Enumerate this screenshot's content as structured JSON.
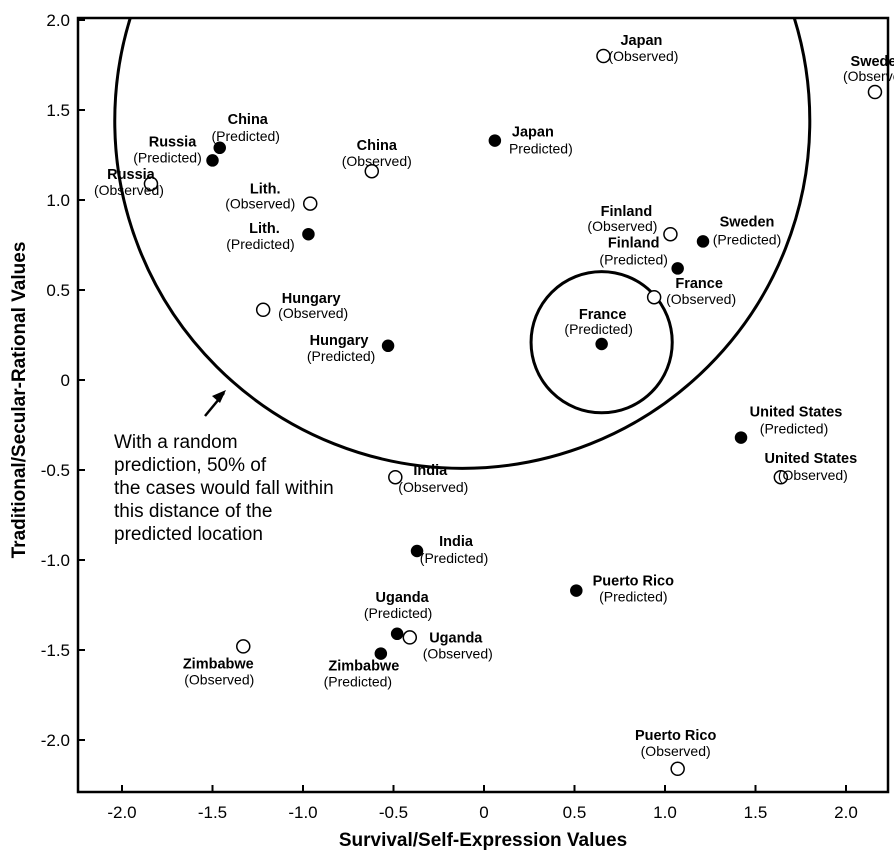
{
  "chart_data": {
    "type": "scatter",
    "xlabel": "Survival/Self-Expression Values",
    "ylabel": "Traditional/Secular-Rational Values",
    "xlim": [
      -2.3,
      2.25
    ],
    "ylim": [
      -2.3,
      2.0
    ],
    "x_ticks": [
      {
        "value": -2.0,
        "label": "-2.0"
      },
      {
        "value": -1.5,
        "label": "-1.5"
      },
      {
        "value": -1.0,
        "label": "-1.0"
      },
      {
        "value": -0.5,
        "label": "-0.5"
      },
      {
        "value": 0,
        "label": "0"
      },
      {
        "value": 0.5,
        "label": "0.5"
      },
      {
        "value": 1.0,
        "label": "1.0"
      },
      {
        "value": 1.5,
        "label": "1.5"
      },
      {
        "value": 2.0,
        "label": "2.0"
      }
    ],
    "y_ticks": [
      {
        "value": 2.0,
        "label": "2.0"
      },
      {
        "value": 1.5,
        "label": "1.5"
      },
      {
        "value": 1.0,
        "label": "1.0"
      },
      {
        "value": 0.5,
        "label": "0.5"
      },
      {
        "value": 0,
        "label": "0"
      },
      {
        "value": -0.5,
        "label": "-0.5"
      },
      {
        "value": -1.0,
        "label": "-1.0"
      },
      {
        "value": -1.5,
        "label": "-1.5"
      },
      {
        "value": -2.0,
        "label": "-2.0"
      }
    ],
    "series": [
      {
        "name": "Predicted",
        "marker": "filled-circle",
        "points": [
          {
            "x": -1.46,
            "y": 1.29,
            "name": "China",
            "sub": "(Predicted)"
          },
          {
            "x": -1.5,
            "y": 1.22,
            "name": "Russia",
            "sub": "(Predicted)"
          },
          {
            "x": 0.06,
            "y": 1.33,
            "name": "Japan",
            "sub": "Predicted)"
          },
          {
            "x": -0.97,
            "y": 0.81,
            "name": "Lith.",
            "sub": "(Predicted)"
          },
          {
            "x": 1.21,
            "y": 0.77,
            "name": "Sweden",
            "sub": "(Predicted)"
          },
          {
            "x": 1.07,
            "y": 0.62,
            "name": "Finland",
            "sub": "(Predicted)"
          },
          {
            "x": 0.65,
            "y": 0.2,
            "name": "France",
            "sub": "(Predicted)"
          },
          {
            "x": -0.53,
            "y": 0.19,
            "name": "Hungary",
            "sub": "(Predicted)"
          },
          {
            "x": 1.42,
            "y": -0.32,
            "name": "United States",
            "sub": "(Predicted)"
          },
          {
            "x": -0.37,
            "y": -0.95,
            "name": "India",
            "sub": "(Predicted)"
          },
          {
            "x": 0.51,
            "y": -1.17,
            "name": "Puerto Rico",
            "sub": "(Predicted)"
          },
          {
            "x": -0.48,
            "y": -1.41,
            "name": "Uganda",
            "sub": "(Predicted)"
          },
          {
            "x": -0.57,
            "y": -1.52,
            "name": "Zimbabwe",
            "sub": "(Predicted)"
          }
        ]
      },
      {
        "name": "Observed",
        "marker": "open-circle",
        "points": [
          {
            "x": 0.66,
            "y": 1.8,
            "name": "Japan",
            "sub": "(Observed)"
          },
          {
            "x": 2.16,
            "y": 1.6,
            "name": "Sweden",
            "sub": "(Observed)"
          },
          {
            "x": -0.62,
            "y": 1.16,
            "name": "China",
            "sub": "(Observed)"
          },
          {
            "x": -1.84,
            "y": 1.09,
            "name": "Russia",
            "sub": "(Observed)"
          },
          {
            "x": -0.96,
            "y": 0.98,
            "name": "Lith.",
            "sub": "(Observed)"
          },
          {
            "x": 1.03,
            "y": 0.81,
            "name": "Finland",
            "sub": "(Observed)"
          },
          {
            "x": 0.94,
            "y": 0.46,
            "name": "France",
            "sub": "(Observed)"
          },
          {
            "x": -1.22,
            "y": 0.39,
            "name": "Hungary",
            "sub": "(Observed)"
          },
          {
            "x": -0.49,
            "y": -0.54,
            "name": "India",
            "sub": "(Observed)"
          },
          {
            "x": 1.64,
            "y": -0.54,
            "name": "United States",
            "sub": "(Observed)"
          },
          {
            "x": -0.41,
            "y": -1.43,
            "name": "Uganda",
            "sub": "(Observed)"
          },
          {
            "x": -1.33,
            "y": -1.48,
            "name": "Zimbabwe",
            "sub": "(Observed)"
          },
          {
            "x": 1.07,
            "y": -2.16,
            "name": "Puerto Rico",
            "sub": "(Observed)"
          }
        ]
      }
    ],
    "circles": [
      {
        "name": "large",
        "cx": -0.12,
        "cy": 1.44,
        "r": 1.92
      },
      {
        "name": "small",
        "cx": 0.65,
        "cy": 0.21,
        "r": 0.39
      }
    ],
    "annotation": {
      "lines": [
        "With a random",
        "prediction, 50% of",
        "the cases would fall within",
        "this distance of the",
        "predicted location"
      ]
    },
    "grid": false,
    "legend": "none"
  }
}
